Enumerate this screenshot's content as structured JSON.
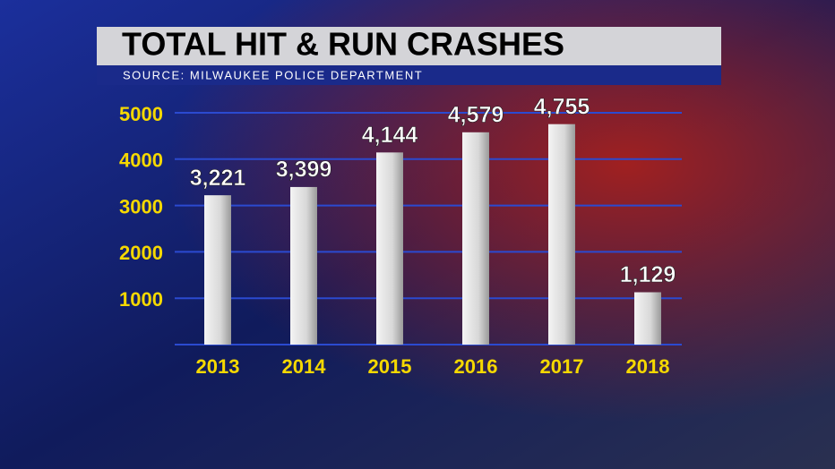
{
  "chart_data": {
    "type": "bar",
    "title": "TOTAL HIT & RUN CRASHES",
    "subtitle": "SOURCE: MILWAUKEE POLICE DEPARTMENT",
    "categories": [
      "2013",
      "2014",
      "2015",
      "2016",
      "2017",
      "2018"
    ],
    "values": [
      3221,
      3399,
      4144,
      4579,
      4755,
      1129
    ],
    "value_labels": [
      "3,221",
      "3,399",
      "4,144",
      "4,579",
      "4,755",
      "1,129"
    ],
    "color": "#e8e8e8",
    "ylim": [
      0,
      5000
    ],
    "yticks": [
      1000,
      2000,
      3000,
      4000,
      5000
    ],
    "grid": true
  }
}
